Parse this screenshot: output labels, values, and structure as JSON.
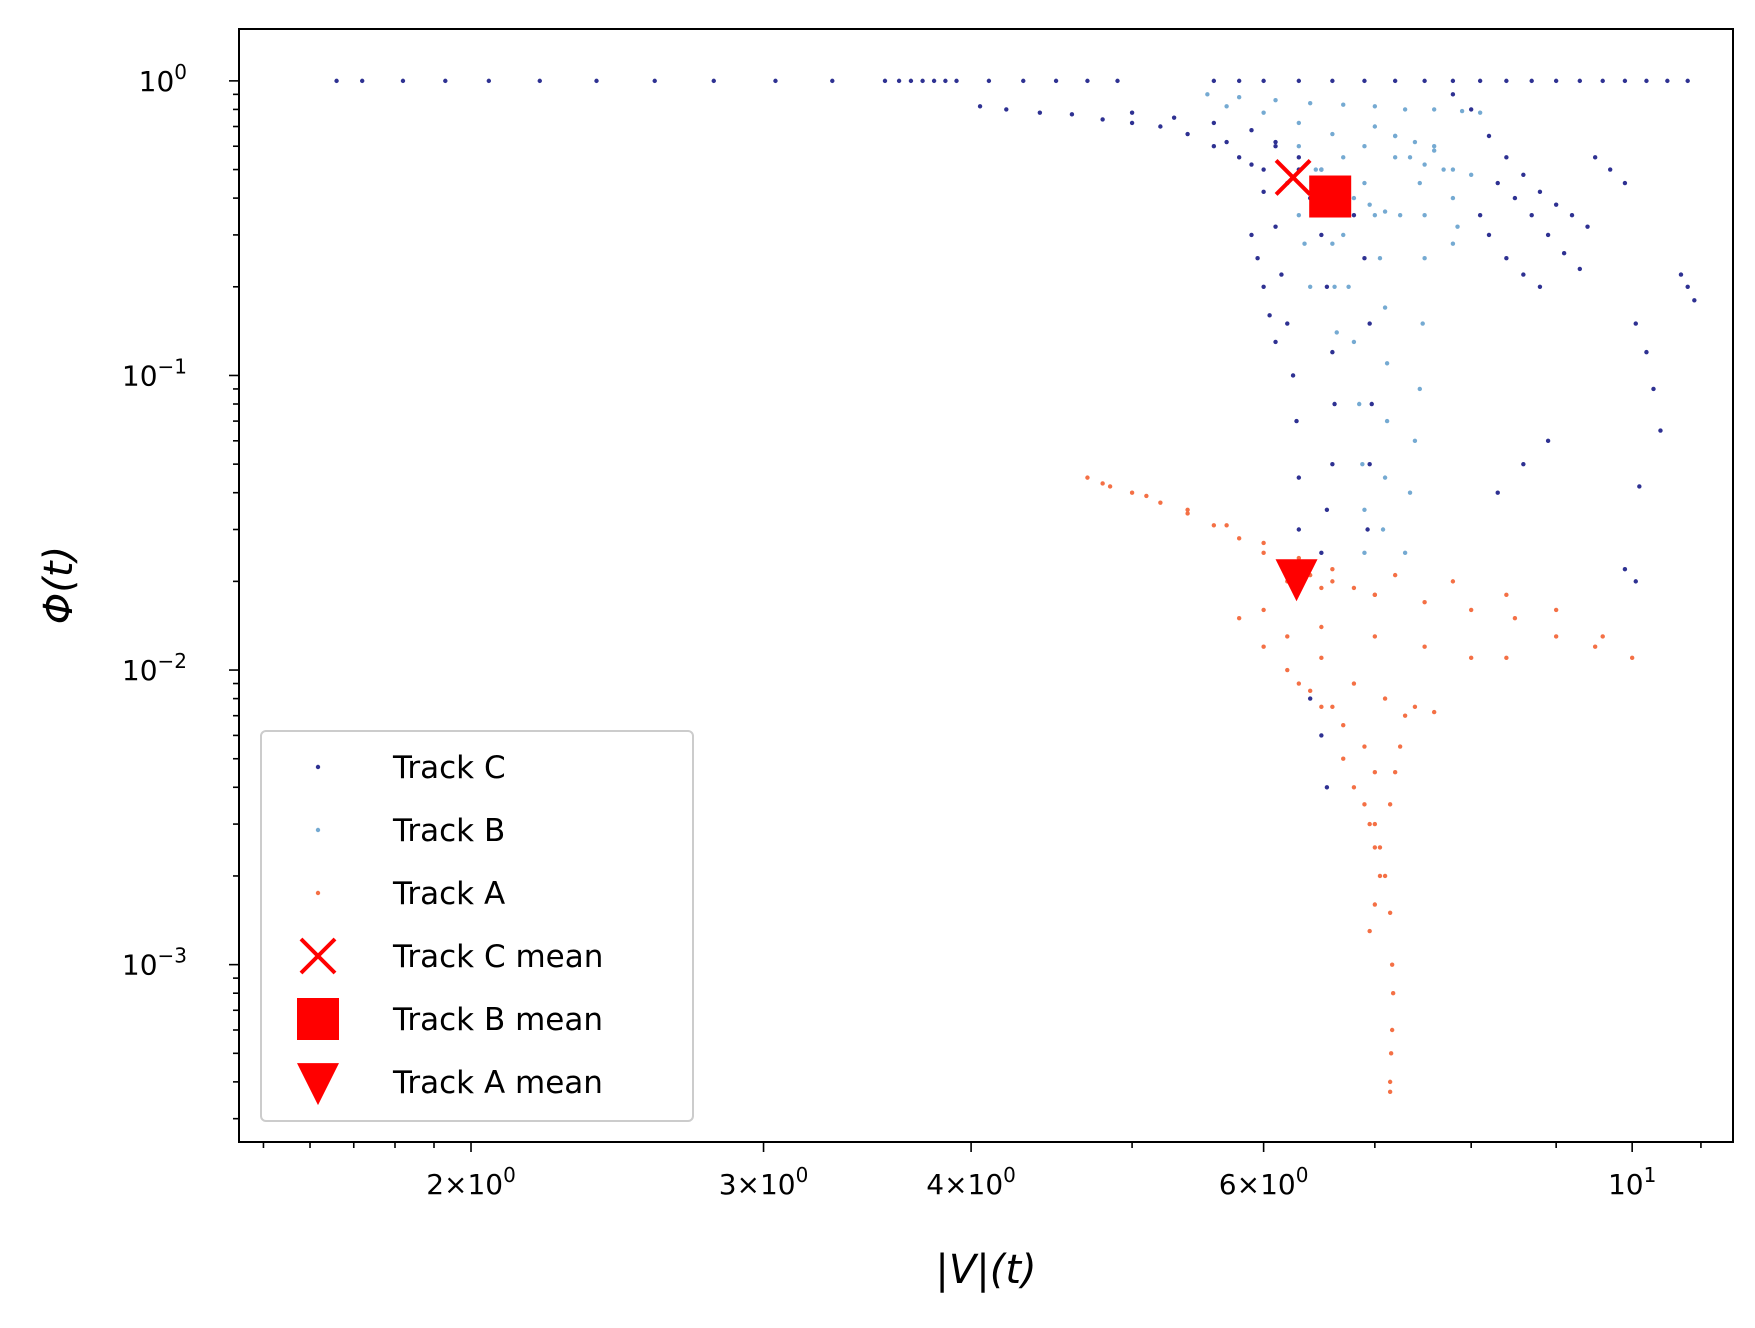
{
  "chart_data": {
    "type": "scatter",
    "xscale": "log",
    "yscale": "log",
    "xlabel": "|V|(t)",
    "ylabel": "Φ(t)",
    "xlim": [
      1.45,
      11.5
    ],
    "ylim": [
      0.00025,
      1.5
    ],
    "grid": false,
    "legend_position": "lower-left",
    "x_ticks": [
      {
        "value": 2,
        "mantissa": "2",
        "exp": "0"
      },
      {
        "value": 3,
        "mantissa": "3",
        "exp": "0"
      },
      {
        "value": 4,
        "mantissa": "4",
        "exp": "0"
      },
      {
        "value": 6,
        "mantissa": "6",
        "exp": "0"
      },
      {
        "value": 10,
        "mantissa": "",
        "exp": "1"
      }
    ],
    "y_ticks": [
      {
        "value": 1,
        "exp": "0"
      },
      {
        "value": 0.1,
        "exp": "−1"
      },
      {
        "value": 0.01,
        "exp": "−2"
      },
      {
        "value": 0.001,
        "exp": "−3"
      }
    ],
    "series": [
      {
        "name": "Track C",
        "color": "#2e3192",
        "marker": "dot",
        "points": [
          [
            1.66,
            1.0
          ],
          [
            1.72,
            1.0
          ],
          [
            1.82,
            1.0
          ],
          [
            1.93,
            1.0
          ],
          [
            2.05,
            1.0
          ],
          [
            2.2,
            1.0
          ],
          [
            2.38,
            1.0
          ],
          [
            2.58,
            1.0
          ],
          [
            2.8,
            1.0
          ],
          [
            3.05,
            1.0
          ],
          [
            3.3,
            1.0
          ],
          [
            3.55,
            1.0
          ],
          [
            3.62,
            1.0
          ],
          [
            3.68,
            1.0
          ],
          [
            3.74,
            1.0
          ],
          [
            3.8,
            1.0
          ],
          [
            3.86,
            1.0
          ],
          [
            3.92,
            1.0
          ],
          [
            4.1,
            1.0
          ],
          [
            4.3,
            1.0
          ],
          [
            4.5,
            1.0
          ],
          [
            4.7,
            1.0
          ],
          [
            4.9,
            1.0
          ],
          [
            5.6,
            1.0
          ],
          [
            5.8,
            1.0
          ],
          [
            6.0,
            1.0
          ],
          [
            6.3,
            1.0
          ],
          [
            6.6,
            1.0
          ],
          [
            6.9,
            1.0
          ],
          [
            7.2,
            1.0
          ],
          [
            7.5,
            1.0
          ],
          [
            7.8,
            1.0
          ],
          [
            8.1,
            1.0
          ],
          [
            8.4,
            1.0
          ],
          [
            8.7,
            1.0
          ],
          [
            9.0,
            1.0
          ],
          [
            9.3,
            1.0
          ],
          [
            9.6,
            1.0
          ],
          [
            9.9,
            1.0
          ],
          [
            10.2,
            1.0
          ],
          [
            10.5,
            1.0
          ],
          [
            10.8,
            1.0
          ],
          [
            4.05,
            0.82
          ],
          [
            4.2,
            0.8
          ],
          [
            4.4,
            0.78
          ],
          [
            4.6,
            0.77
          ],
          [
            4.8,
            0.74
          ],
          [
            5.0,
            0.72
          ],
          [
            5.2,
            0.7
          ],
          [
            5.4,
            0.66
          ],
          [
            5.6,
            0.6
          ],
          [
            5.8,
            0.55
          ],
          [
            6.0,
            0.5
          ],
          [
            6.2,
            0.45
          ],
          [
            5.0,
            0.78
          ],
          [
            5.3,
            0.75
          ],
          [
            5.6,
            0.72
          ],
          [
            5.9,
            0.68
          ],
          [
            6.1,
            0.6
          ],
          [
            6.3,
            0.5
          ],
          [
            6.4,
            0.4
          ],
          [
            6.5,
            0.3
          ],
          [
            6.55,
            0.2
          ],
          [
            6.6,
            0.12
          ],
          [
            6.62,
            0.08
          ],
          [
            6.6,
            0.05
          ],
          [
            6.55,
            0.035
          ],
          [
            6.5,
            0.025
          ],
          [
            5.7,
            0.62
          ],
          [
            5.9,
            0.52
          ],
          [
            6.0,
            0.42
          ],
          [
            6.1,
            0.32
          ],
          [
            6.15,
            0.22
          ],
          [
            6.2,
            0.15
          ],
          [
            6.25,
            0.1
          ],
          [
            6.28,
            0.07
          ],
          [
            6.3,
            0.045
          ],
          [
            6.3,
            0.03
          ],
          [
            6.1,
            0.62
          ],
          [
            6.3,
            0.55
          ],
          [
            6.5,
            0.5
          ],
          [
            6.7,
            0.45
          ],
          [
            6.8,
            0.35
          ],
          [
            6.9,
            0.25
          ],
          [
            6.95,
            0.15
          ],
          [
            6.97,
            0.08
          ],
          [
            6.95,
            0.05
          ],
          [
            6.93,
            0.03
          ],
          [
            5.9,
            0.3
          ],
          [
            5.95,
            0.25
          ],
          [
            6.0,
            0.2
          ],
          [
            6.05,
            0.16
          ],
          [
            6.1,
            0.13
          ],
          [
            6.4,
            0.008
          ],
          [
            6.5,
            0.006
          ],
          [
            6.55,
            0.004
          ],
          [
            7.8,
            0.9
          ],
          [
            8.0,
            0.8
          ],
          [
            8.2,
            0.65
          ],
          [
            8.4,
            0.55
          ],
          [
            8.6,
            0.48
          ],
          [
            8.8,
            0.42
          ],
          [
            9.0,
            0.38
          ],
          [
            9.2,
            0.35
          ],
          [
            9.4,
            0.32
          ],
          [
            8.3,
            0.45
          ],
          [
            8.5,
            0.4
          ],
          [
            8.7,
            0.35
          ],
          [
            8.9,
            0.3
          ],
          [
            9.1,
            0.26
          ],
          [
            9.3,
            0.23
          ],
          [
            8.1,
            0.35
          ],
          [
            8.2,
            0.3
          ],
          [
            8.4,
            0.25
          ],
          [
            8.6,
            0.22
          ],
          [
            8.8,
            0.2
          ],
          [
            9.5,
            0.55
          ],
          [
            9.7,
            0.5
          ],
          [
            9.9,
            0.45
          ],
          [
            10.05,
            0.15
          ],
          [
            10.2,
            0.12
          ],
          [
            10.3,
            0.09
          ],
          [
            10.4,
            0.065
          ],
          [
            10.7,
            0.22
          ],
          [
            10.8,
            0.2
          ],
          [
            10.9,
            0.18
          ],
          [
            8.3,
            0.04
          ],
          [
            8.6,
            0.05
          ],
          [
            8.9,
            0.06
          ],
          [
            10.1,
            0.042
          ],
          [
            10.05,
            0.02
          ],
          [
            9.9,
            0.022
          ]
        ]
      },
      {
        "name": "Track B",
        "color": "#75aad2",
        "marker": "dot",
        "points": [
          [
            5.55,
            0.9
          ],
          [
            5.8,
            0.88
          ],
          [
            6.1,
            0.86
          ],
          [
            6.4,
            0.84
          ],
          [
            6.7,
            0.83
          ],
          [
            7.0,
            0.82
          ],
          [
            7.3,
            0.8
          ],
          [
            7.6,
            0.8
          ],
          [
            7.9,
            0.79
          ],
          [
            8.1,
            0.78
          ],
          [
            5.7,
            0.82
          ],
          [
            6.0,
            0.78
          ],
          [
            6.3,
            0.72
          ],
          [
            6.6,
            0.66
          ],
          [
            6.9,
            0.6
          ],
          [
            7.2,
            0.55
          ],
          [
            7.5,
            0.52
          ],
          [
            7.8,
            0.5
          ],
          [
            8.0,
            0.48
          ],
          [
            6.5,
            0.5
          ],
          [
            6.6,
            0.4
          ],
          [
            6.7,
            0.3
          ],
          [
            6.75,
            0.2
          ],
          [
            6.8,
            0.13
          ],
          [
            6.85,
            0.08
          ],
          [
            6.88,
            0.05
          ],
          [
            6.9,
            0.035
          ],
          [
            6.9,
            0.025
          ],
          [
            6.7,
            0.55
          ],
          [
            6.9,
            0.45
          ],
          [
            7.0,
            0.35
          ],
          [
            7.05,
            0.25
          ],
          [
            7.1,
            0.17
          ],
          [
            7.12,
            0.11
          ],
          [
            7.12,
            0.07
          ],
          [
            7.1,
            0.045
          ],
          [
            7.08,
            0.03
          ],
          [
            6.3,
            0.6
          ],
          [
            6.45,
            0.5
          ],
          [
            6.55,
            0.38
          ],
          [
            6.6,
            0.28
          ],
          [
            6.62,
            0.2
          ],
          [
            6.64,
            0.14
          ],
          [
            7.2,
            0.65
          ],
          [
            7.35,
            0.55
          ],
          [
            7.45,
            0.45
          ],
          [
            7.5,
            0.35
          ],
          [
            7.5,
            0.25
          ],
          [
            7.48,
            0.15
          ],
          [
            7.45,
            0.09
          ],
          [
            7.4,
            0.06
          ],
          [
            7.35,
            0.04
          ],
          [
            7.3,
            0.025
          ],
          [
            7.6,
            0.6
          ],
          [
            7.7,
            0.5
          ],
          [
            7.8,
            0.4
          ],
          [
            7.85,
            0.32
          ],
          [
            7.8,
            0.28
          ],
          [
            6.2,
            0.45
          ],
          [
            6.3,
            0.35
          ],
          [
            6.35,
            0.28
          ],
          [
            6.4,
            0.2
          ],
          [
            7.0,
            0.7
          ],
          [
            7.2,
            0.65
          ],
          [
            7.4,
            0.62
          ],
          [
            7.6,
            0.58
          ],
          [
            6.8,
            0.4
          ],
          [
            6.95,
            0.38
          ],
          [
            7.1,
            0.36
          ],
          [
            7.25,
            0.35
          ]
        ]
      },
      {
        "name": "Track A",
        "color": "#f47045",
        "marker": "dot",
        "points": [
          [
            4.7,
            0.045
          ],
          [
            4.85,
            0.042
          ],
          [
            5.0,
            0.04
          ],
          [
            5.2,
            0.037
          ],
          [
            5.4,
            0.034
          ],
          [
            5.6,
            0.031
          ],
          [
            5.8,
            0.028
          ],
          [
            6.0,
            0.025
          ],
          [
            6.2,
            0.023
          ],
          [
            6.4,
            0.021
          ],
          [
            6.6,
            0.02
          ],
          [
            6.8,
            0.019
          ],
          [
            7.0,
            0.018
          ],
          [
            4.8,
            0.043
          ],
          [
            5.1,
            0.039
          ],
          [
            5.4,
            0.035
          ],
          [
            5.7,
            0.031
          ],
          [
            6.0,
            0.027
          ],
          [
            6.3,
            0.024
          ],
          [
            6.2,
            0.02
          ],
          [
            6.5,
            0.019
          ],
          [
            7.0,
            0.018
          ],
          [
            7.5,
            0.017
          ],
          [
            8.0,
            0.016
          ],
          [
            8.5,
            0.015
          ],
          [
            9.0,
            0.013
          ],
          [
            9.5,
            0.012
          ],
          [
            10.0,
            0.011
          ],
          [
            6.6,
            0.022
          ],
          [
            7.2,
            0.021
          ],
          [
            7.8,
            0.02
          ],
          [
            8.4,
            0.018
          ],
          [
            9.0,
            0.016
          ],
          [
            9.6,
            0.013
          ],
          [
            6.0,
            0.016
          ],
          [
            6.5,
            0.014
          ],
          [
            7.0,
            0.013
          ],
          [
            7.5,
            0.012
          ],
          [
            8.0,
            0.011
          ],
          [
            8.4,
            0.011
          ],
          [
            6.2,
            0.013
          ],
          [
            6.5,
            0.011
          ],
          [
            6.8,
            0.009
          ],
          [
            7.1,
            0.008
          ],
          [
            7.4,
            0.0075
          ],
          [
            7.6,
            0.0072
          ],
          [
            6.3,
            0.009
          ],
          [
            6.5,
            0.0075
          ],
          [
            6.7,
            0.0065
          ],
          [
            6.9,
            0.0055
          ],
          [
            7.0,
            0.0045
          ],
          [
            6.7,
            0.005
          ],
          [
            6.8,
            0.004
          ],
          [
            6.9,
            0.0035
          ],
          [
            6.95,
            0.003
          ],
          [
            7.0,
            0.0025
          ],
          [
            7.05,
            0.002
          ],
          [
            7.0,
            0.0016
          ],
          [
            6.95,
            0.0013
          ],
          [
            7.0,
            0.003
          ],
          [
            7.05,
            0.0025
          ],
          [
            7.1,
            0.002
          ],
          [
            7.15,
            0.0015
          ],
          [
            7.17,
            0.001
          ],
          [
            7.18,
            0.0008
          ],
          [
            7.17,
            0.0006
          ],
          [
            7.16,
            0.0005
          ],
          [
            7.15,
            0.0004
          ],
          [
            7.15,
            0.00037
          ],
          [
            7.3,
            0.007
          ],
          [
            7.25,
            0.0055
          ],
          [
            7.2,
            0.0045
          ],
          [
            7.15,
            0.0035
          ],
          [
            5.8,
            0.015
          ],
          [
            6.0,
            0.012
          ],
          [
            6.2,
            0.01
          ],
          [
            6.4,
            0.0085
          ],
          [
            6.6,
            0.0075
          ]
        ]
      },
      {
        "name": "Track C mean",
        "color": "#ff0000",
        "marker": "x",
        "points": [
          [
            6.25,
            0.47
          ]
        ]
      },
      {
        "name": "Track B mean",
        "color": "#ff0000",
        "marker": "square",
        "points": [
          [
            6.58,
            0.405
          ]
        ]
      },
      {
        "name": "Track A mean",
        "color": "#ff0000",
        "marker": "triangle-down",
        "points": [
          [
            6.28,
            0.0205
          ]
        ]
      }
    ]
  }
}
